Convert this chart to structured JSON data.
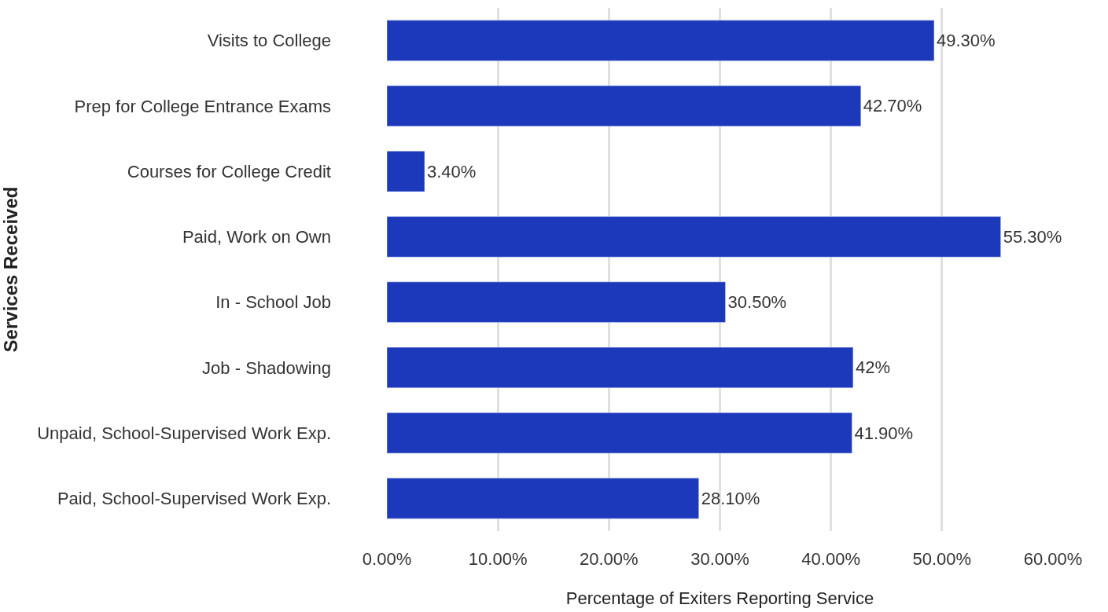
{
  "chart_data": {
    "type": "bar",
    "orientation": "horizontal",
    "xlabel": "Percentage of Exiters Reporting Service",
    "ylabel": "Services Received",
    "categories": [
      "Visits to College",
      "Prep for College Entrance Exams",
      "Courses for College Credit",
      "Paid, Work on Own",
      "In - School Job",
      "Job - Shadowing",
      "Unpaid, School-Supervised Work Exp.",
      "Paid, School-Supervised Work Exp."
    ],
    "values": [
      49.3,
      42.7,
      3.4,
      55.3,
      30.5,
      42,
      41.9,
      28.1
    ],
    "value_labels": [
      "49.30%",
      "42.70%",
      "3.40%",
      "55.30%",
      "30.50%",
      "42%",
      "41.90%",
      "28.10%"
    ],
    "color": "#1c39bb",
    "xlim": [
      0,
      60
    ],
    "xticks": [
      {
        "value": 0,
        "label": "0.00%"
      },
      {
        "value": 10,
        "label": "10.00%"
      },
      {
        "value": 20,
        "label": "20.00%"
      },
      {
        "value": 30,
        "label": "30.00%"
      },
      {
        "value": 40,
        "label": "40.00%"
      },
      {
        "value": 50,
        "label": "50.00%"
      },
      {
        "value": 60,
        "label": "60.00%"
      }
    ],
    "grid": "x",
    "legend": false
  }
}
